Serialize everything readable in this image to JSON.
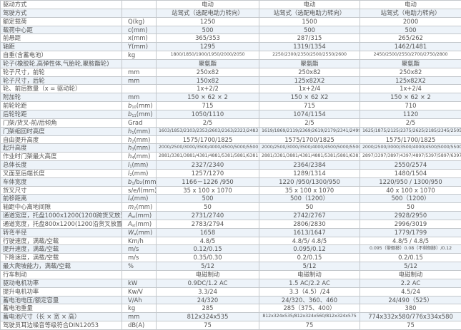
{
  "table": {
    "rows": [
      {
        "label": "驱动方式",
        "unit": [
          "",
          "",
          ""
        ],
        "values": [
          "电动",
          "电动",
          "电动"
        ]
      },
      {
        "label": "驾驶方式",
        "unit": [
          "",
          "",
          ""
        ],
        "values": [
          "站驾式（选配电助力转向）",
          "站驾式（选配电助力转向）",
          "站驾式（电助力转向）"
        ]
      },
      {
        "label": "额定载荷",
        "unit": [
          "",
          "",
          "Q(kg)"
        ],
        "values": [
          "1250",
          "1500",
          "2000"
        ]
      },
      {
        "label": "载荷中心距",
        "unit": [
          "",
          "",
          "c(mm)"
        ],
        "values": [
          "500",
          "500",
          "500"
        ]
      },
      {
        "label": "前悬距",
        "unit": [
          "",
          "",
          "x(mm)"
        ],
        "values": [
          "365/353",
          "287/315",
          "265/262"
        ]
      },
      {
        "label": "轴距",
        "unit": [
          "",
          "",
          "Y(mm)"
        ],
        "values": [
          "1295",
          "1319/1354",
          "1462/1481"
        ]
      },
      {
        "label": "自重(含蓄电池）",
        "unit": [
          "",
          "",
          "kg"
        ],
        "values": [
          "1800/1850/1900/1950/2000/2050",
          "2250/2300/2350/2500/2550/2600",
          "2450/2500/2550/2700/2750/2800"
        ],
        "small": true
      },
      {
        "label": "轮子(橡胶轮,高弹性体,气胎轮,聚胺酯轮)",
        "unit": [
          "",
          "",
          ""
        ],
        "values": [
          "聚氨酯",
          "聚氨酯",
          "聚氨酯"
        ]
      },
      {
        "label": "轮子尺寸，前轮",
        "unit": [
          "",
          "",
          "mm"
        ],
        "values": [
          "250x82",
          "250x82",
          "250x82"
        ]
      },
      {
        "label": "轮子尺寸，后轮",
        "unit": [
          "",
          "",
          "mm"
        ],
        "values": [
          "150x82",
          "125x82X2",
          "125x82X2"
        ]
      },
      {
        "label": "轮、前后数量（x = 驱动轮）",
        "unit": [
          "",
          "",
          ""
        ],
        "values": [
          "1x+2/2",
          "1x+2/4",
          "1x+2/4"
        ]
      },
      {
        "label": "附加轮",
        "unit": [
          "",
          "",
          "mm"
        ],
        "values": [
          "150 × 62 × 2",
          "150 × 62 X2",
          "150 × 62 × 2"
        ]
      },
      {
        "label": "前轮轮距",
        "unit": [
          "b",
          "10",
          "(mm)"
        ],
        "values": [
          "715",
          "715",
          "710"
        ]
      },
      {
        "label": "后轮轮距",
        "unit": [
          "b",
          "11",
          "(mm)"
        ],
        "values": [
          "1050/1110",
          "1074/1154",
          "1120"
        ]
      },
      {
        "label": "门架/货叉-前/后倾角",
        "unit": [
          "",
          "",
          "Grad"
        ],
        "values": [
          "2/5",
          "2/5",
          "2/5"
        ]
      },
      {
        "label": "门架缩回时高度",
        "unit": [
          "h",
          "1",
          "(mm)"
        ],
        "values": [
          "1603/1853/2103/2353/2603/2163/2323/2483",
          "1619/1869/2119/2369/2619/2179/2341/2499",
          "1625/1875/2125/2375/2625/2185/2345/2505"
        ],
        "small": true
      },
      {
        "label": "自由提升高度",
        "unit": [
          "h",
          "2",
          "(mm)"
        ],
        "values": [
          "1575/1700/1825",
          "1575/1700/1825",
          "1575/1700/1825"
        ]
      },
      {
        "label": "起升高度",
        "unit": [
          "h",
          "3",
          "(mm)"
        ],
        "values": [
          "2000/2500/3000/3500/4000/4500/5000/5500",
          "2000/2500/3000/3500/4000/4500/5000/5500",
          "2000/2500/3000/3500/4000/4500/5000/5500"
        ],
        "small": true
      },
      {
        "label": "作业时门架最大高度",
        "unit": [
          "h",
          "4",
          "(mm)"
        ],
        "values": [
          "2881/3381/3881/4381/4881/5381/5881/6381",
          "2881/3381/3881/4381/4881/5381/5881/6381",
          "2897/3397/3897/4397/4897/5397/5897/6397"
        ],
        "small": true
      },
      {
        "label": "总体长度",
        "unit": [
          "l",
          "1",
          "(mm)"
        ],
        "values": [
          "2327/2340",
          "2364/2384",
          "2550/2574"
        ]
      },
      {
        "label": "叉面至后端长度",
        "unit": [
          "l",
          "2",
          "(mm)"
        ],
        "values": [
          "1257/1270",
          "1289/1314",
          "1480/1504"
        ]
      },
      {
        "label": "车体宽度",
        "unit": [
          "b",
          "1",
          "/b₂(mm)"
        ],
        "values": [
          "1166－1226 /950",
          "1220 /950/1300/950",
          "1220/950 / 1300/950"
        ]
      },
      {
        "label": "货叉尺寸",
        "unit": [
          "",
          "",
          "s/e/l(mm)"
        ],
        "values": [
          "35 x 100 x 1070",
          "35 x 100 x 1070",
          "40 x 100 x 1070"
        ]
      },
      {
        "label": "前移距离",
        "unit": [
          "l",
          "4",
          "(mm)"
        ],
        "values": [
          "500",
          "500（1200）",
          "500（1200）"
        ]
      },
      {
        "label": "轴距中心离地间隙",
        "unit": [
          "m",
          "2",
          "(mm)"
        ],
        "values": [
          "50",
          "50",
          "50"
        ]
      },
      {
        "label": "通道宽度，托盘1000x1200(1200跨货叉放置)",
        "unit": [
          "A",
          "st",
          "(mm)"
        ],
        "values": [
          "2731/2740",
          "2742/2767",
          "2928/2950"
        ]
      },
      {
        "label": "通道宽度，托盘800x1200(1200沿货叉放置)",
        "unit": [
          "A",
          "st",
          "(mm)"
        ],
        "values": [
          "2783/2794",
          "2806/2830",
          "2996/3019"
        ]
      },
      {
        "label": "转弯半径",
        "unit": [
          "W",
          "a",
          "(mm)"
        ],
        "values": [
          "1658",
          "1613/1647",
          "1779/1799"
        ]
      },
      {
        "label": "行驶速度，满载/空载",
        "unit": [
          "",
          "",
          "Km/h"
        ],
        "values": [
          "4.8/5",
          "4.8/5/  4.8/5",
          "4.8/5 / 4.8/5"
        ]
      },
      {
        "label": "提升速度，满载/空载",
        "unit": [
          "",
          "",
          "m/s"
        ],
        "values": [
          "0.12/0.15",
          "0.095/0.12",
          "0.095（带侧移）0.08（不带侧移）/0.12"
        ],
        "small3": true
      },
      {
        "label": "下降速度，满载/空载",
        "unit": [
          "",
          "",
          "m/s"
        ],
        "values": [
          "0.35/0.30",
          "0.2/0.15",
          "0.2/0.15"
        ]
      },
      {
        "label": "最大爬坡能力，满载/空载",
        "unit": [
          "",
          "",
          "%"
        ],
        "values": [
          "5/12",
          "5/12",
          "5/12"
        ]
      },
      {
        "label": "行车制动",
        "unit": [
          "",
          "",
          ""
        ],
        "values": [
          "电磁制动",
          "电磁制动",
          "电磁制动"
        ]
      },
      {
        "label": "驱动电机功率",
        "unit": [
          "",
          "",
          "kW"
        ],
        "values": [
          "0.9DC/1.2 AC",
          "1.5 AC/2.2 AC",
          "2.2 AC"
        ]
      },
      {
        "label": "提升电机功率",
        "unit": [
          "",
          "",
          "Kw/V"
        ],
        "values": [
          "3.3/24",
          "3.3（4.5）/24",
          "4.5/24"
        ]
      },
      {
        "label": "蓄电池电压/额定容量",
        "unit": [
          "",
          "",
          "V/Ah"
        ],
        "values": [
          "24/320",
          "24/320、360、460",
          "24/490（525）"
        ]
      },
      {
        "label": "蓄电池重量",
        "unit": [
          "",
          "",
          "kg"
        ],
        "values": [
          "285",
          "285（375、400）",
          "380"
        ]
      },
      {
        "label": "蓄电池尺寸（长 × 宽 × 高）",
        "unit": [
          "",
          "",
          "mm"
        ],
        "values": [
          "812x324x535",
          "812x324x535/812x324x560/812x324x575",
          "774x332x580/776x334x580"
        ],
        "small23": true
      },
      {
        "label": "驾驶员耳边噪音等级符合DIN12053",
        "unit": [
          "",
          "",
          "dB(A)"
        ],
        "values": [
          "75",
          "75",
          "75"
        ]
      }
    ]
  },
  "colors": {
    "row_alt": "#edf3f9",
    "border": "#c4c8cc",
    "text": "#555555"
  }
}
